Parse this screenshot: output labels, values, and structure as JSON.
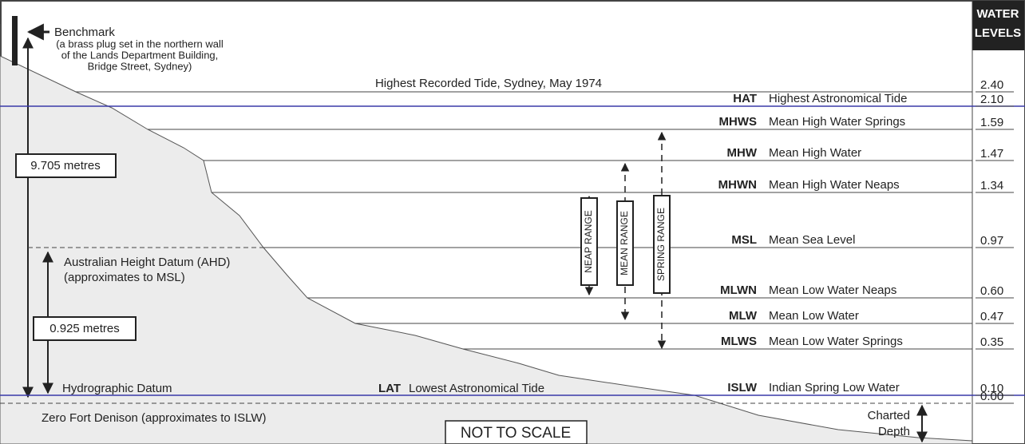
{
  "header": {
    "title": [
      "WATER",
      "LEVELS"
    ]
  },
  "benchmark": {
    "label": "Benchmark",
    "note": [
      "(a brass plug set in the northern wall",
      "of the Lands Department Building,",
      "Bridge Street, Sydney)"
    ]
  },
  "measures": {
    "benchmark_height": "9.705 metres",
    "ahd_height": "0.925 metres"
  },
  "ahd": {
    "label": [
      "Australian Height Datum (AHD)",
      "(approximates to MSL)"
    ]
  },
  "datums": {
    "hydrographic": "Hydrographic Datum",
    "lat_abbr": "LAT",
    "lat_name": "Lowest Astronomical Tide",
    "zero": "Zero Fort Denison (approximates to ISLW)"
  },
  "levels": [
    {
      "name": "Highest Recorded Tide, Sydney, May 1974",
      "value": "2.40"
    },
    {
      "abbr": "HAT",
      "name": "Highest Astronomical Tide",
      "value": "2.10"
    },
    {
      "abbr": "MHWS",
      "name": "Mean High Water Springs",
      "value": "1.59"
    },
    {
      "abbr": "MHW",
      "name": "Mean High Water",
      "value": "1.47"
    },
    {
      "abbr": "MHWN",
      "name": "Mean High Water Neaps",
      "value": "1.34"
    },
    {
      "abbr": "MSL",
      "name": "Mean Sea Level",
      "value": "0.97"
    },
    {
      "abbr": "MLWN",
      "name": "Mean Low Water Neaps",
      "value": "0.60"
    },
    {
      "abbr": "MLW",
      "name": "Mean Low Water",
      "value": "0.47"
    },
    {
      "abbr": "MLWS",
      "name": "Mean Low Water Springs",
      "value": "0.35"
    },
    {
      "abbr": "ISLW",
      "name": "Indian Spring Low Water",
      "value": "0.10"
    },
    {
      "value": "0.00"
    }
  ],
  "ranges": [
    "NEAP RANGE",
    "MEAN RANGE",
    "SPRING RANGE"
  ],
  "note": "NOT TO SCALE",
  "charted_depth": [
    "Charted",
    "Depth"
  ]
}
